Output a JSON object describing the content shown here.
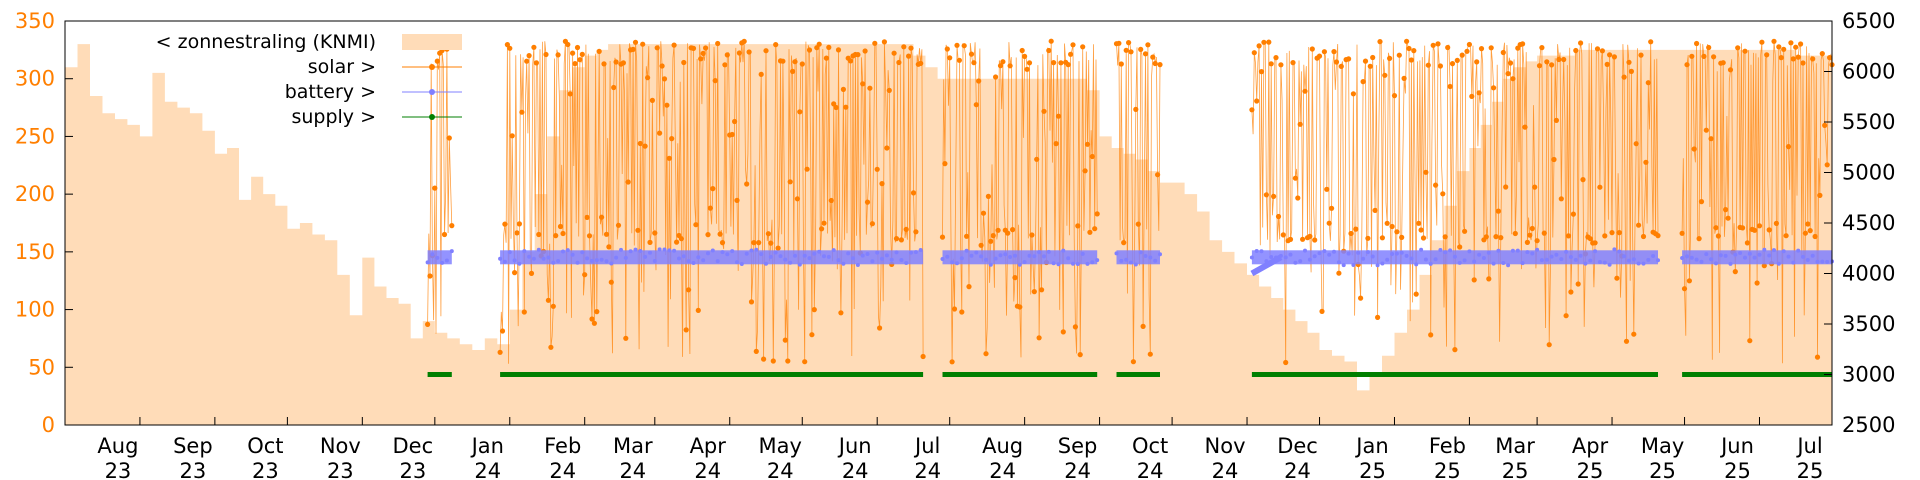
{
  "chart_data": {
    "type": "line",
    "title": "",
    "xlabel": "",
    "ylabel": "",
    "y_left_range": [
      0,
      350
    ],
    "y_right_range": [
      2500,
      6500
    ],
    "y_left_ticks": [
      "0",
      "50",
      "100",
      "150",
      "200",
      "250",
      "300",
      "350"
    ],
    "y_right_ticks": [
      "2500",
      "3000",
      "3500",
      "4000",
      "4500",
      "5000",
      "5500",
      "6000",
      "6500"
    ],
    "x_ticks": [
      {
        "month": "Aug",
        "year": "23"
      },
      {
        "month": "Sep",
        "year": "23"
      },
      {
        "month": "Oct",
        "year": "23"
      },
      {
        "month": "Nov",
        "year": "23"
      },
      {
        "month": "Dec",
        "year": "23"
      },
      {
        "month": "Jan",
        "year": "24"
      },
      {
        "month": "Feb",
        "year": "24"
      },
      {
        "month": "Mar",
        "year": "24"
      },
      {
        "month": "Apr",
        "year": "24"
      },
      {
        "month": "May",
        "year": "24"
      },
      {
        "month": "Jun",
        "year": "24"
      },
      {
        "month": "Jul",
        "year": "24"
      },
      {
        "month": "Aug",
        "year": "24"
      },
      {
        "month": "Sep",
        "year": "24"
      },
      {
        "month": "Oct",
        "year": "24"
      },
      {
        "month": "Nov",
        "year": "24"
      },
      {
        "month": "Dec",
        "year": "24"
      },
      {
        "month": "Jan",
        "year": "25"
      },
      {
        "month": "Feb",
        "year": "25"
      },
      {
        "month": "Mar",
        "year": "25"
      },
      {
        "month": "Apr",
        "year": "25"
      },
      {
        "month": "May",
        "year": "25"
      },
      {
        "month": "Jun",
        "year": "25"
      },
      {
        "month": "Jul",
        "year": "25"
      }
    ],
    "x_range": [
      "2023-07-01",
      "2025-07-01"
    ],
    "grid": false,
    "legend_position": "top-left",
    "series": [
      {
        "name": "< zonnestraling (KNMI)",
        "axis": "left",
        "style": "area",
        "color": "#ffdcb8",
        "monthly_level": [
          {
            "month": "2023-07",
            "values": [
              310,
              330,
              285,
              270,
              265,
              260
            ]
          },
          {
            "month": "2023-08",
            "values": [
              250,
              305,
              280,
              275,
              270,
              255
            ]
          },
          {
            "month": "2023-09",
            "values": [
              235,
              240,
              195,
              215,
              200,
              190
            ]
          },
          {
            "month": "2023-10",
            "values": [
              170,
              175,
              165,
              160,
              130,
              95
            ]
          },
          {
            "month": "2023-11",
            "values": [
              145,
              120,
              110,
              105,
              75,
              90
            ]
          },
          {
            "month": "2023-12",
            "values": [
              80,
              75,
              70,
              65,
              75,
              70
            ]
          },
          {
            "month": "2024-01",
            "values": [
              100,
              150,
              200,
              250,
              290,
              310
            ]
          },
          {
            "month": "2024-02",
            "values": [
              320,
              325,
              330,
              330,
              330,
              330
            ]
          },
          {
            "month": "2024-03",
            "values": [
              330,
              330,
              330,
              330,
              330,
              330
            ]
          },
          {
            "month": "2024-04",
            "values": [
              330,
              330,
              330,
              330,
              330,
              330
            ]
          },
          {
            "month": "2024-05",
            "values": [
              330,
              330,
              330,
              330,
              330,
              330
            ]
          },
          {
            "month": "2024-06",
            "values": [
              330,
              330,
              330,
              320,
              310,
              300
            ]
          },
          {
            "month": "2024-07",
            "values": [
              300,
              300,
              300,
              300,
              300,
              300
            ]
          },
          {
            "month": "2024-08",
            "values": [
              300,
              300,
              300,
              300,
              300,
              290
            ]
          },
          {
            "month": "2024-09",
            "values": [
              250,
              240,
              235,
              230,
              220,
              210
            ]
          },
          {
            "month": "2024-10",
            "values": [
              210,
              200,
              185,
              160,
              150,
              140
            ]
          },
          {
            "month": "2024-11",
            "values": [
              130,
              120,
              110,
              100,
              90,
              80
            ]
          },
          {
            "month": "2024-12",
            "values": [
              65,
              60,
              55,
              30,
              45,
              60
            ]
          },
          {
            "month": "2025-01",
            "values": [
              80,
              100,
              130,
              160,
              190,
              220
            ]
          },
          {
            "month": "2025-02",
            "values": [
              240,
              260,
              280,
              300,
              310,
              315
            ]
          },
          {
            "month": "2025-03",
            "values": [
              320,
              320,
              320,
              325,
              325,
              325
            ]
          },
          {
            "month": "2025-04",
            "values": [
              325,
              325,
              325,
              325,
              325,
              325
            ]
          },
          {
            "month": "2025-05",
            "values": [
              325,
              325,
              325,
              325,
              325,
              325
            ]
          },
          {
            "month": "2025-06",
            "values": [
              325,
              325,
              325,
              320,
              320,
              320
            ]
          }
        ]
      },
      {
        "name": "solar >",
        "axis": "right",
        "style": "lines+points",
        "color": "#ff7f00",
        "active_periods": [
          [
            "2023-11-28",
            "2023-12-08"
          ],
          [
            "2023-12-28",
            "2024-06-20"
          ],
          [
            "2024-06-28",
            "2024-08-31"
          ],
          [
            "2024-09-08",
            "2024-09-26"
          ],
          [
            "2024-11-03",
            "2025-04-20"
          ],
          [
            "2025-04-30",
            "2025-07-01"
          ]
        ],
        "typical_min": 3000,
        "typical_max": 6300,
        "baseline_band": [
          4300,
          4500
        ]
      },
      {
        "name": "battery >",
        "axis": "right",
        "style": "points",
        "color": "#8080ff",
        "typical_value": 4160,
        "start_value_nov24": 4000
      },
      {
        "name": "supply >",
        "axis": "right",
        "style": "points",
        "color": "#007f00",
        "typical_value": 3000
      }
    ]
  }
}
